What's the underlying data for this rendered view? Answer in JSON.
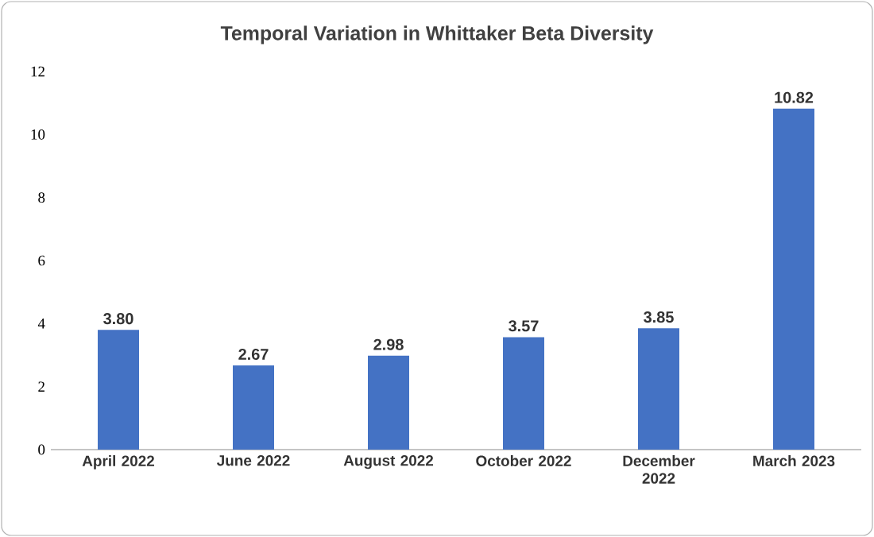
{
  "chart_data": {
    "type": "bar",
    "title": "Temporal Variation in Whittaker Beta Diversity",
    "categories": [
      "April 2022",
      "June 2022",
      "August 2022",
      "October 2022",
      "December 2022",
      "March 2023"
    ],
    "values": [
      3.8,
      2.67,
      2.98,
      3.57,
      3.85,
      10.82
    ],
    "value_labels": [
      "3.80",
      "2.67",
      "2.98",
      "3.57",
      "3.85",
      "10.82"
    ],
    "color": "#4472c4",
    "ylim": [
      0,
      12
    ],
    "yticks": [
      0,
      2,
      4,
      6,
      8,
      10,
      12
    ]
  }
}
